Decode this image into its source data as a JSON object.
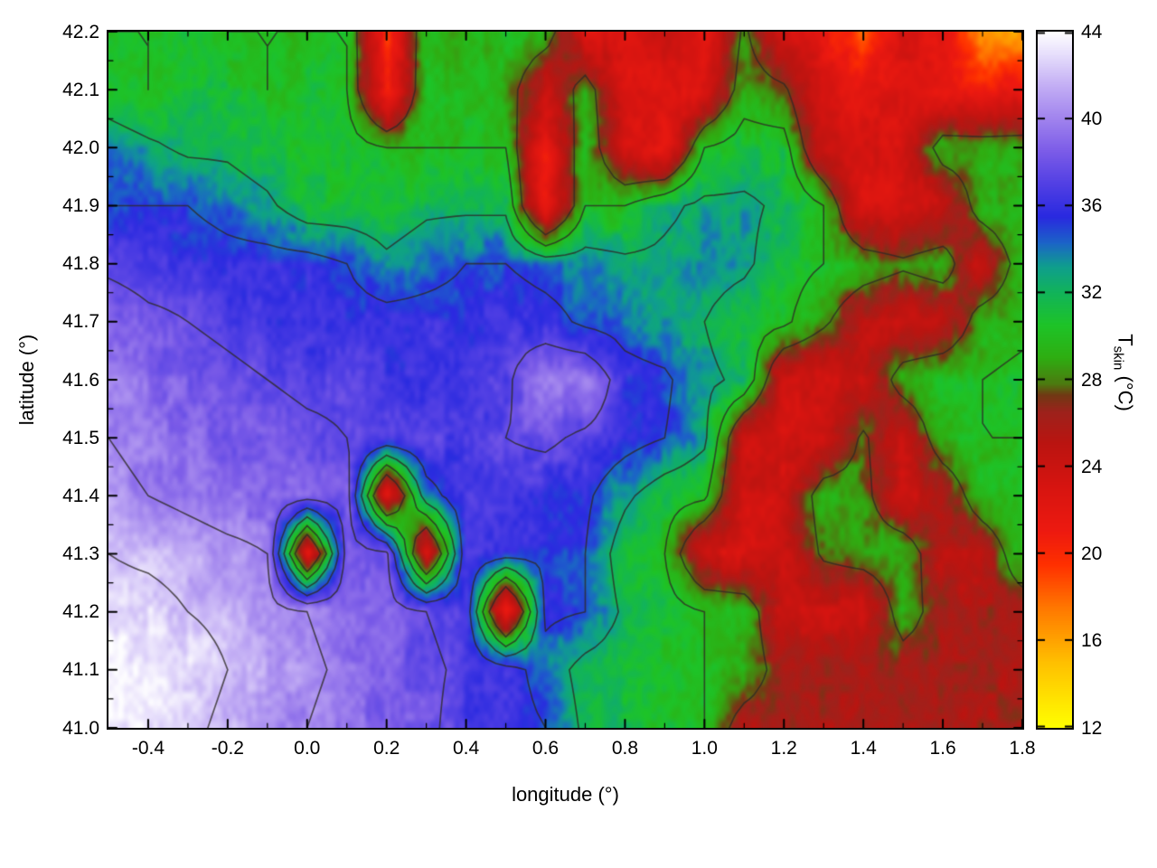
{
  "chart_data": {
    "type": "heatmap",
    "title": "",
    "xlabel": "longitude (°)",
    "ylabel": "latitude (°)",
    "xlim": [
      -0.5,
      1.8
    ],
    "ylim": [
      41.0,
      42.2
    ],
    "clim": [
      12,
      44
    ],
    "x_tick_values": [
      -0.4,
      -0.2,
      0.0,
      0.2,
      0.4,
      0.6,
      0.8,
      1.0,
      1.2,
      1.4,
      1.6,
      1.8
    ],
    "x_tick_labels": [
      "-0.4",
      "-0.2",
      "0.0",
      "0.2",
      "0.4",
      "0.6",
      "0.8",
      "1.0",
      "1.2",
      "1.4",
      "1.6",
      "1.8"
    ],
    "y_tick_values": [
      41.0,
      41.1,
      41.2,
      41.3,
      41.4,
      41.5,
      41.6,
      41.7,
      41.8,
      41.9,
      42.0,
      42.1,
      42.2
    ],
    "y_tick_labels": [
      "41.0",
      "41.1",
      "41.2",
      "41.3",
      "41.4",
      "41.5",
      "41.6",
      "41.7",
      "41.8",
      "41.9",
      "42.0",
      "42.1",
      "42.2"
    ],
    "colorbar": {
      "label_main": "T",
      "label_sub": "skin",
      "label_unit": " (°C)",
      "tick_values": [
        12,
        16,
        20,
        24,
        28,
        32,
        36,
        40,
        44
      ],
      "tick_labels": [
        "12",
        "16",
        "20",
        "24",
        "28",
        "32",
        "36",
        "40",
        "44"
      ]
    },
    "grid": {
      "lon_min": -0.5,
      "lon_max": 1.8,
      "lat_min": 41.0,
      "lat_max": 42.2,
      "ncols": 24,
      "nrows": 13,
      "order": "rows north (42.2) to south (41.0), cols west (-0.5) to east (1.8), skin temperature in °C",
      "temperature_c": [
        [
          30,
          30,
          31,
          30,
          30,
          30,
          30,
          20,
          30,
          29,
          30,
          29,
          23,
          22,
          24,
          22,
          28,
          23,
          22,
          18,
          23,
          22,
          17,
          16
        ],
        [
          31,
          30,
          31,
          31,
          30,
          31,
          30,
          21,
          30,
          30,
          29,
          24,
          29,
          23,
          22,
          23,
          29,
          28,
          23,
          22,
          23,
          22,
          21,
          22
        ],
        [
          34,
          33,
          32,
          32,
          31,
          31,
          31,
          30,
          30,
          30,
          30,
          21,
          30,
          23,
          22,
          30,
          31,
          31,
          24,
          23,
          23,
          29,
          29,
          29
        ],
        [
          35,
          35,
          35,
          34,
          33,
          31,
          31,
          31,
          32,
          32,
          32,
          21,
          30,
          30,
          32,
          33,
          33,
          32,
          30,
          23,
          23,
          24,
          29,
          30
        ],
        [
          37,
          36.5,
          36.5,
          36,
          36,
          36,
          35,
          33,
          34,
          35,
          35,
          34,
          33.5,
          33,
          33,
          33.5,
          33,
          31,
          30,
          29,
          28,
          29,
          24,
          29
        ],
        [
          39,
          38,
          37.5,
          37,
          36.5,
          36,
          36,
          36,
          36,
          36,
          36.5,
          36,
          34.5,
          34,
          33,
          32.5,
          31,
          30.5,
          28,
          25,
          24,
          24.5,
          29,
          29.5
        ],
        [
          39.5,
          39,
          38.5,
          38,
          37.5,
          37,
          37,
          36.5,
          36,
          36.5,
          37,
          40,
          40,
          36,
          35.5,
          33,
          32,
          24,
          23.5,
          24,
          29,
          30,
          30,
          30.5
        ],
        [
          40,
          39.5,
          39,
          38.5,
          38.5,
          38,
          37.5,
          37,
          37,
          36.5,
          37.5,
          38,
          37,
          36,
          35,
          33,
          24,
          23.5,
          24,
          28,
          24,
          29.5,
          30,
          30
        ],
        [
          40.5,
          40,
          39.5,
          39,
          39,
          38.5,
          38.5,
          22,
          34,
          36.5,
          36.5,
          36,
          35.5,
          33,
          31,
          30.5,
          23.5,
          24,
          29,
          28.5,
          24,
          25,
          29.5,
          30
        ],
        [
          42,
          41.5,
          41,
          40.5,
          40,
          22,
          38.5,
          38,
          22,
          36.5,
          36,
          35.5,
          35,
          31,
          30,
          23.5,
          23,
          24,
          28,
          29,
          29.5,
          25,
          25,
          29.5
        ],
        [
          43,
          43,
          42,
          41.5,
          41,
          40,
          39,
          38.5,
          37.5,
          36.5,
          21,
          35.5,
          35,
          32,
          31,
          30,
          29.5,
          24,
          24,
          23.5,
          29,
          26,
          26,
          26
        ],
        [
          43.5,
          43.5,
          43,
          42,
          41,
          40.5,
          39.5,
          38.5,
          38,
          37,
          36,
          34,
          31.5,
          31,
          30.5,
          30,
          29.5,
          26,
          26,
          26,
          26,
          26,
          26,
          26
        ],
        [
          43.5,
          43,
          42.5,
          41.5,
          40.5,
          40,
          39,
          38.5,
          38,
          36.5,
          36,
          35,
          32,
          31.5,
          30.5,
          30,
          26,
          26,
          26,
          26,
          26,
          26,
          26,
          26
        ]
      ]
    },
    "palette_stops": [
      [
        12,
        "#ffff00"
      ],
      [
        15,
        "#ffc000"
      ],
      [
        17.5,
        "#ff7800"
      ],
      [
        19.5,
        "#ff3000"
      ],
      [
        21,
        "#ee1a10"
      ],
      [
        23,
        "#d81510"
      ],
      [
        25,
        "#bc1410"
      ],
      [
        26.5,
        "#9e221c"
      ],
      [
        27.3,
        "#703a14"
      ],
      [
        27.8,
        "#4d7a10"
      ],
      [
        29,
        "#2fae12"
      ],
      [
        30.5,
        "#1ec428"
      ],
      [
        32,
        "#12b45a"
      ],
      [
        33.2,
        "#0f9f8e"
      ],
      [
        34.3,
        "#1c64c8"
      ],
      [
        35.5,
        "#2a2ae0"
      ],
      [
        37,
        "#5240e4"
      ],
      [
        38.5,
        "#7c5ce8"
      ],
      [
        40,
        "#a184ee"
      ],
      [
        41.5,
        "#c3aef5"
      ],
      [
        43,
        "#e8e0fc"
      ],
      [
        44,
        "#ffffff"
      ]
    ],
    "contour_levels": [
      27.5,
      30,
      32.5,
      35,
      37.5,
      40,
      42
    ],
    "contour_color": "#2e2a26"
  }
}
